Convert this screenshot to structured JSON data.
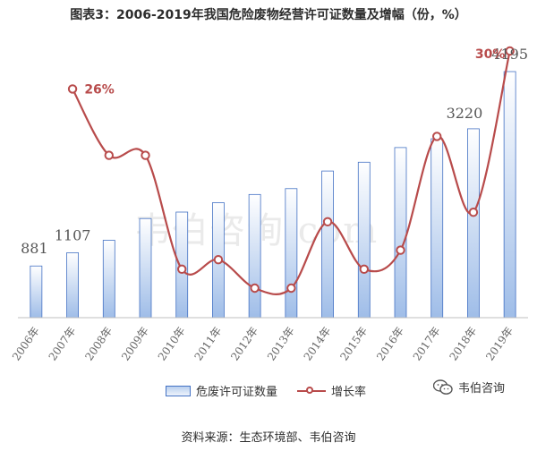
{
  "title": "图表3：2006-2019年我国危险废物经营许可证数量及增幅（份，%）",
  "source": "资料来源：生态环境部、韦伯咨询",
  "watermark": "韦伯咨询.com",
  "wechat_label": "韦伯咨询",
  "chart_data": {
    "type": "bar",
    "categories": [
      "2006年",
      "2007年",
      "2008年",
      "2009年",
      "2010年",
      "2011年",
      "2012年",
      "2013年",
      "2014年",
      "2015年",
      "2016年",
      "2017年",
      "2018年",
      "2019年"
    ],
    "series": [
      {
        "name": "危废许可证数量",
        "type": "bar",
        "values": [
          881,
          1107,
          1320,
          1690,
          1800,
          1960,
          2100,
          2200,
          2500,
          2650,
          2900,
          3050,
          3220,
          4195
        ],
        "color": "#9fbde8"
      },
      {
        "name": "增长率",
        "type": "line",
        "values": [
          null,
          26,
          19,
          19,
          7,
          8,
          5,
          5,
          12,
          7,
          9,
          21,
          13,
          30
        ],
        "color": "#b84b4b"
      }
    ],
    "data_labels": [
      {
        "series": "危废许可证数量",
        "index": 0,
        "text": "881"
      },
      {
        "series": "危废许可证数量",
        "index": 1,
        "text": "1107"
      },
      {
        "series": "危废许可证数量",
        "index": 12,
        "text": "3220"
      },
      {
        "series": "危废许可证数量",
        "index": 13,
        "text": "4195"
      },
      {
        "series": "增长率",
        "index": 1,
        "text": "26%"
      },
      {
        "series": "增长率",
        "index": 13,
        "text": "30%"
      }
    ],
    "legend": [
      "危废许可证数量",
      "增长率"
    ],
    "legend_position": "bottom",
    "grid": false
  }
}
